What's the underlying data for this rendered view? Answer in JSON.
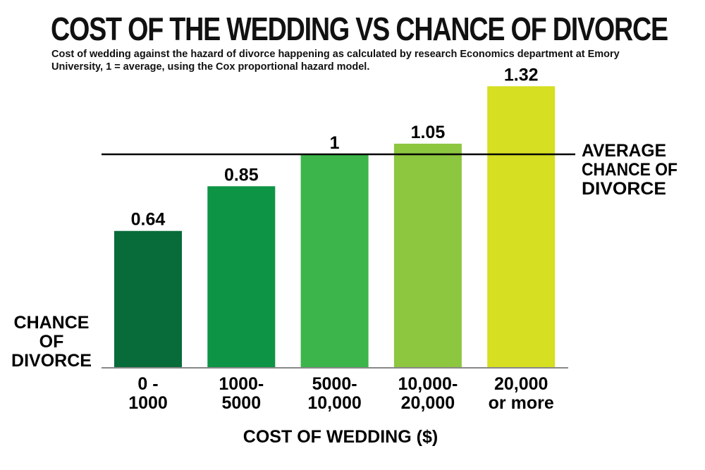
{
  "chart_data": {
    "type": "bar",
    "title": "COST OF THE WEDDING VS CHANCE OF DIVORCE",
    "subtitle": "Cost of wedding against the hazard of divorce happening as calculated by research Economics department at Emory University, 1 = average, using the Cox proportional hazard model.",
    "xlabel": "COST OF WEDDING ($)",
    "ylabel": [
      "CHANCE",
      "OF",
      "DIVORCE"
    ],
    "categories": [
      [
        "0 -",
        "1000"
      ],
      [
        "1000-",
        "5000"
      ],
      [
        "5000-",
        "10,000"
      ],
      [
        "10,000-",
        "20,000"
      ],
      [
        "20,000",
        "or more"
      ]
    ],
    "values": [
      0.64,
      0.85,
      1,
      1.05,
      1.32
    ],
    "data_labels": [
      "0.64",
      "0.85",
      "1",
      "1.05",
      "1.32"
    ],
    "colors": [
      "#086b3a",
      "#0e9445",
      "#3cb54a",
      "#8dc63f",
      "#d6df22"
    ],
    "reference_line": {
      "value": 1,
      "label": [
        "AVERAGE",
        "CHANCE OF",
        "DIVORCE"
      ],
      "color": "#000000"
    },
    "ylim": [
      0,
      1.32
    ],
    "grid": false,
    "legend": "none"
  }
}
